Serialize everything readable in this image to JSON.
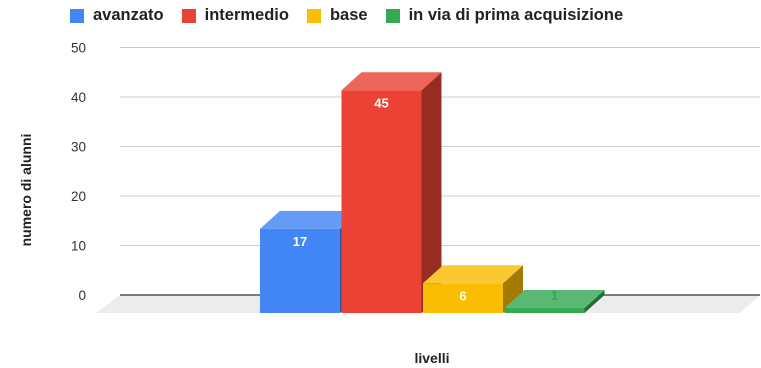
{
  "chart_data": {
    "type": "bar",
    "style": "3d",
    "categories": [
      "avanzato",
      "intermedio",
      "base",
      "in via di prima acquisizione"
    ],
    "values": [
      17,
      45,
      6,
      1
    ],
    "colors": [
      "#4285f4",
      "#ea4335",
      "#fbbc04",
      "#34a853"
    ],
    "xlabel": "livelli",
    "ylabel": "numero di alunni",
    "ylim": [
      0,
      50
    ],
    "yticks": [
      0,
      10,
      20,
      30,
      40,
      50
    ],
    "grid": true,
    "legend": "top",
    "data_labels": true
  }
}
